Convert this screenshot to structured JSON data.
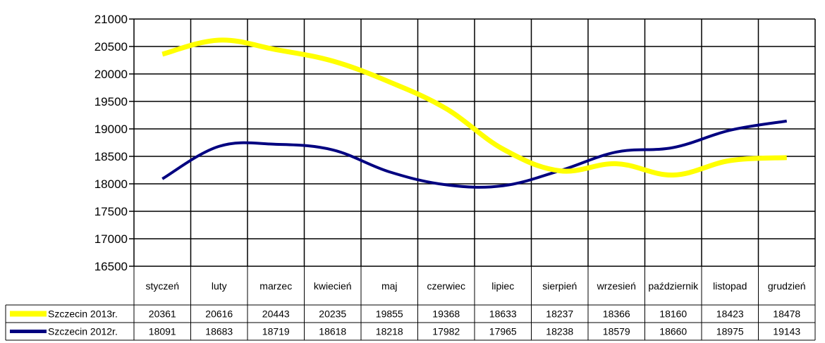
{
  "chart_data": {
    "type": "line",
    "title": "",
    "xlabel": "",
    "ylabel": "",
    "ylim": [
      16500,
      21000
    ],
    "yticks": [
      "16500",
      "17000",
      "17500",
      "18000",
      "18500",
      "19000",
      "19500",
      "20000",
      "20500",
      "21000"
    ],
    "ytick_values": [
      16500,
      17000,
      17500,
      18000,
      18500,
      19000,
      19500,
      20000,
      20500,
      21000
    ],
    "grid": true,
    "legend": "data-table-left",
    "categories": [
      "styczeń",
      "luty",
      "marzec",
      "kwiecień",
      "maj",
      "czerwiec",
      "lipiec",
      "sierpień",
      "wrzesień",
      "październik",
      "listopad",
      "grudzień"
    ],
    "series": [
      {
        "name": "Szczecin 2013r.",
        "color": "#ffff00",
        "values": [
          20361,
          20616,
          20443,
          20235,
          19855,
          19368,
          18633,
          18237,
          18366,
          18160,
          18423,
          18478
        ],
        "labels": [
          "20361",
          "20616",
          "20443",
          "20235",
          "19855",
          "19368",
          "18633",
          "18237",
          "18366",
          "18160",
          "18423",
          "18478"
        ]
      },
      {
        "name": "Szczecin 2012r.",
        "color": "#000080",
        "values": [
          18091,
          18683,
          18719,
          18618,
          18218,
          17982,
          17965,
          18238,
          18579,
          18660,
          18975,
          19143
        ],
        "labels": [
          "18091",
          "18683",
          "18719",
          "18618",
          "18218",
          "17982",
          "17965",
          "18238",
          "18579",
          "18660",
          "18975",
          "19143"
        ]
      }
    ]
  }
}
